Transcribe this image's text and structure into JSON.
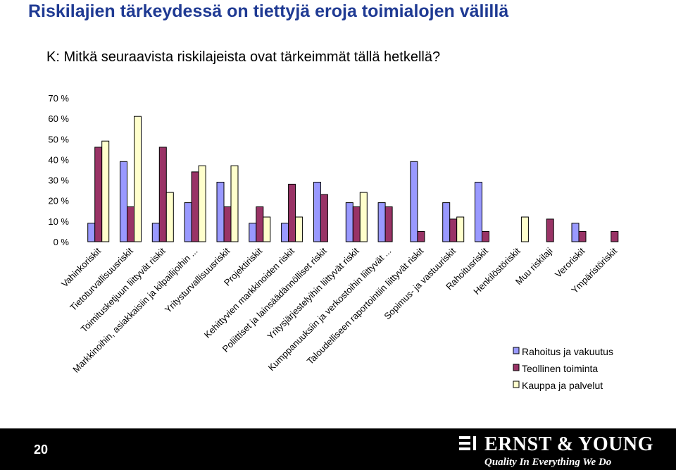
{
  "page": {
    "title": "Riskilajien tärkeydessä on tiettyjä eroja toimialojen välillä",
    "question": "K: Mitkä seuraavista riskilajeista ovat tärkeimmät tällä hetkellä?",
    "page_number": "20"
  },
  "footer": {
    "brand": "ERNST & YOUNG",
    "tagline": "Quality In Everything We Do",
    "background": "#000000"
  },
  "chart_data": {
    "type": "bar",
    "ylim": [
      0,
      70
    ],
    "yticks": [
      "0 %",
      "10 %",
      "20 %",
      "30 %",
      "40 %",
      "50 %",
      "60 %",
      "70 %"
    ],
    "grid": false,
    "legend_position": "bottom-right",
    "categories": [
      "Vahinkoriskit",
      "Tietoturvallisuusriskit",
      "Toimitusketjuun liittyvät riskit",
      "Markkinoihin, asiakkaisiin ja kilpailijoihin ...",
      "Yritysturvallisuusriskit",
      "Projektiriskit",
      "Kehittyvien markkinoiden riskit",
      "Poliittiset ja lainsäädännölliset riskit",
      "Yritysjärjestelyihin liittyvät riskit",
      "Kumppanuuksiin ja verkostoihin liittyvät ...",
      "Taloudelliseen raportointiin liittyvät riskit",
      "Sopimus- ja vastuuriskit",
      "Rahoitusriskit",
      "Henkilöstöriskit",
      "Muu riskilaji",
      "Veroriskit",
      "Ympäristöriskit"
    ],
    "series": [
      {
        "name": "Rahoitus ja vakuutus",
        "color": "#9999ff",
        "values": [
          9,
          39,
          9,
          19,
          29,
          9,
          9,
          29,
          19,
          19,
          39,
          19,
          29,
          0,
          0,
          9,
          0
        ]
      },
      {
        "name": "Teollinen toiminta",
        "color": "#993366",
        "values": [
          46,
          17,
          46,
          34,
          17,
          17,
          28,
          23,
          17,
          17,
          5,
          11,
          5,
          0,
          11,
          5,
          5
        ]
      },
      {
        "name": "Kauppa ja palvelut",
        "color": "#ffffcc",
        "values": [
          49,
          61,
          24,
          37,
          37,
          12,
          12,
          0,
          24,
          0,
          0,
          12,
          0,
          12,
          0,
          0,
          0
        ]
      }
    ]
  }
}
